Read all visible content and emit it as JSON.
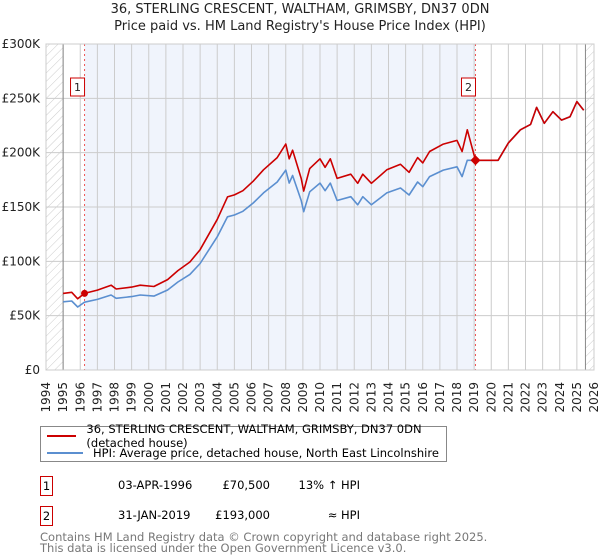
{
  "title_line1": "36, STERLING CRESCENT, WALTHAM, GRIMSBY, DN37 0DN",
  "title_line2": "Price paid vs. HM Land Registry's House Price Index (HPI)",
  "legend": {
    "property": "36, STERLING CRESCENT, WALTHAM, GRIMSBY, DN37 0DN (detached house)",
    "hpi": "HPI: Average price, detached house, North East Lincolnshire"
  },
  "colors": {
    "property": "#cc0000",
    "hpi": "#5b8fd0",
    "shade": "#f0f4fc"
  },
  "transactions": [
    {
      "num": "1",
      "date": "03-APR-1996",
      "price": "£70,500",
      "hpi_rel": "13% ↑ HPI"
    },
    {
      "num": "2",
      "date": "31-JAN-2019",
      "price": "£193,000",
      "hpi_rel": "≈ HPI"
    }
  ],
  "footer_line1": "Contains HM Land Registry data © Crown copyright and database right 2025.",
  "footer_line2": "This data is licensed under the Open Government Licence v3.0.",
  "chart_data": {
    "type": "line",
    "title": "36, STERLING CRESCENT, WALTHAM, GRIMSBY, DN37 0DN — Price paid vs. HM Land Registry's House Price Index (HPI)",
    "xlim": [
      1994,
      2026
    ],
    "ylim": [
      0,
      300000
    ],
    "y_ticks": [
      0,
      50000,
      100000,
      150000,
      200000,
      250000,
      300000
    ],
    "y_tick_labels": [
      "£0",
      "£50K",
      "£100K",
      "£150K",
      "£200K",
      "£250K",
      "£300K"
    ],
    "x_ticks": [
      "1994",
      "1995",
      "1996",
      "1997",
      "1998",
      "1999",
      "2000",
      "2001",
      "2002",
      "2003",
      "2004",
      "2005",
      "2006",
      "2007",
      "2008",
      "2009",
      "2010",
      "2011",
      "2012",
      "2013",
      "2014",
      "2015",
      "2016",
      "2017",
      "2018",
      "2019",
      "2020",
      "2021",
      "2022",
      "2023",
      "2024",
      "2025",
      "2026"
    ],
    "grid": true,
    "data_range": [
      1995,
      2025.5
    ],
    "shaded_range": [
      1996.25,
      2019.08
    ],
    "sales": [
      {
        "label": "1",
        "x": 1996.25,
        "y": 70500
      },
      {
        "label": "2",
        "x": 2019.08,
        "y": 193000
      }
    ],
    "series": [
      {
        "name": "HPI: Average price, detached house, North East Lincolnshire",
        "x": [
          1995.0,
          1995.5,
          1995.85,
          1996.25,
          1997.0,
          1997.8,
          1998.1,
          1999.0,
          1999.5,
          2000.3,
          2001.1,
          2001.7,
          2002.4,
          2003.0,
          2004.0,
          2004.6,
          2005.0,
          2005.5,
          2006.1,
          2006.7,
          2007.5,
          2008.0,
          2008.2,
          2008.4,
          2008.9,
          2009.05,
          2009.4,
          2010.0,
          2010.3,
          2010.6,
          2011.0,
          2011.8,
          2012.2,
          2012.5,
          2013.0,
          2013.9,
          2014.7,
          2015.2,
          2015.7,
          2016.0,
          2016.4,
          2017.2,
          2018.0,
          2018.3,
          2018.6,
          2019.08,
          2019.9,
          2020.4,
          2021.0,
          2021.7,
          2022.3,
          2022.65,
          2023.1,
          2023.6,
          2024.1,
          2024.6,
          2025.0,
          2025.4
        ],
        "y": [
          62800,
          63500,
          58000,
          62400,
          65000,
          69000,
          66000,
          67500,
          69000,
          68000,
          73600,
          81000,
          88000,
          98000,
          122700,
          141000,
          142600,
          146000,
          153700,
          163000,
          173000,
          184000,
          172000,
          179000,
          156000,
          145700,
          164000,
          172000,
          165000,
          172000,
          156000,
          159500,
          152000,
          159500,
          152000,
          163000,
          167500,
          161000,
          173000,
          168700,
          178000,
          184000,
          187000,
          178000,
          193000,
          193000,
          193000,
          193000,
          209000,
          221000,
          226000,
          241700,
          227000,
          237700,
          230000,
          233000,
          247000,
          239000
        ]
      },
      {
        "name": "36, STERLING CRESCENT, WALTHAM, GRIMSBY, DN37 0DN (detached house)",
        "x": [
          1995.0,
          1995.5,
          1995.85,
          1996.25,
          1997.0,
          1997.8,
          1998.1,
          1999.0,
          1999.5,
          2000.3,
          2001.1,
          2001.7,
          2002.4,
          2003.0,
          2004.0,
          2004.6,
          2005.0,
          2005.5,
          2006.1,
          2006.7,
          2007.5,
          2008.0,
          2008.2,
          2008.4,
          2008.9,
          2009.05,
          2009.4,
          2010.0,
          2010.3,
          2010.6,
          2011.0,
          2011.8,
          2012.2,
          2012.5,
          2013.0,
          2013.9,
          2014.7,
          2015.2,
          2015.7,
          2016.0,
          2016.4,
          2017.2,
          2018.0,
          2018.3,
          2018.6,
          2019.08,
          2019.9,
          2020.4,
          2021.0,
          2021.7,
          2022.3,
          2022.65,
          2023.1,
          2023.6,
          2024.1,
          2024.6,
          2025.0,
          2025.4
        ],
        "y": [
          70500,
          71500,
          65500,
          70500,
          73500,
          78000,
          74500,
          76300,
          78000,
          76800,
          83200,
          91500,
          99400,
          110700,
          138700,
          159300,
          161100,
          165000,
          173700,
          184200,
          195500,
          208000,
          194400,
          202300,
          176300,
          164600,
          185300,
          194400,
          186500,
          194400,
          176300,
          180200,
          171800,
          180200,
          171800,
          184200,
          189300,
          181900,
          195500,
          190600,
          201100,
          207900,
          211300,
          201100,
          221000,
          193000,
          193000,
          193000,
          209000,
          221000,
          226000,
          241700,
          227000,
          237700,
          230000,
          233000,
          247000,
          239000
        ]
      }
    ]
  }
}
